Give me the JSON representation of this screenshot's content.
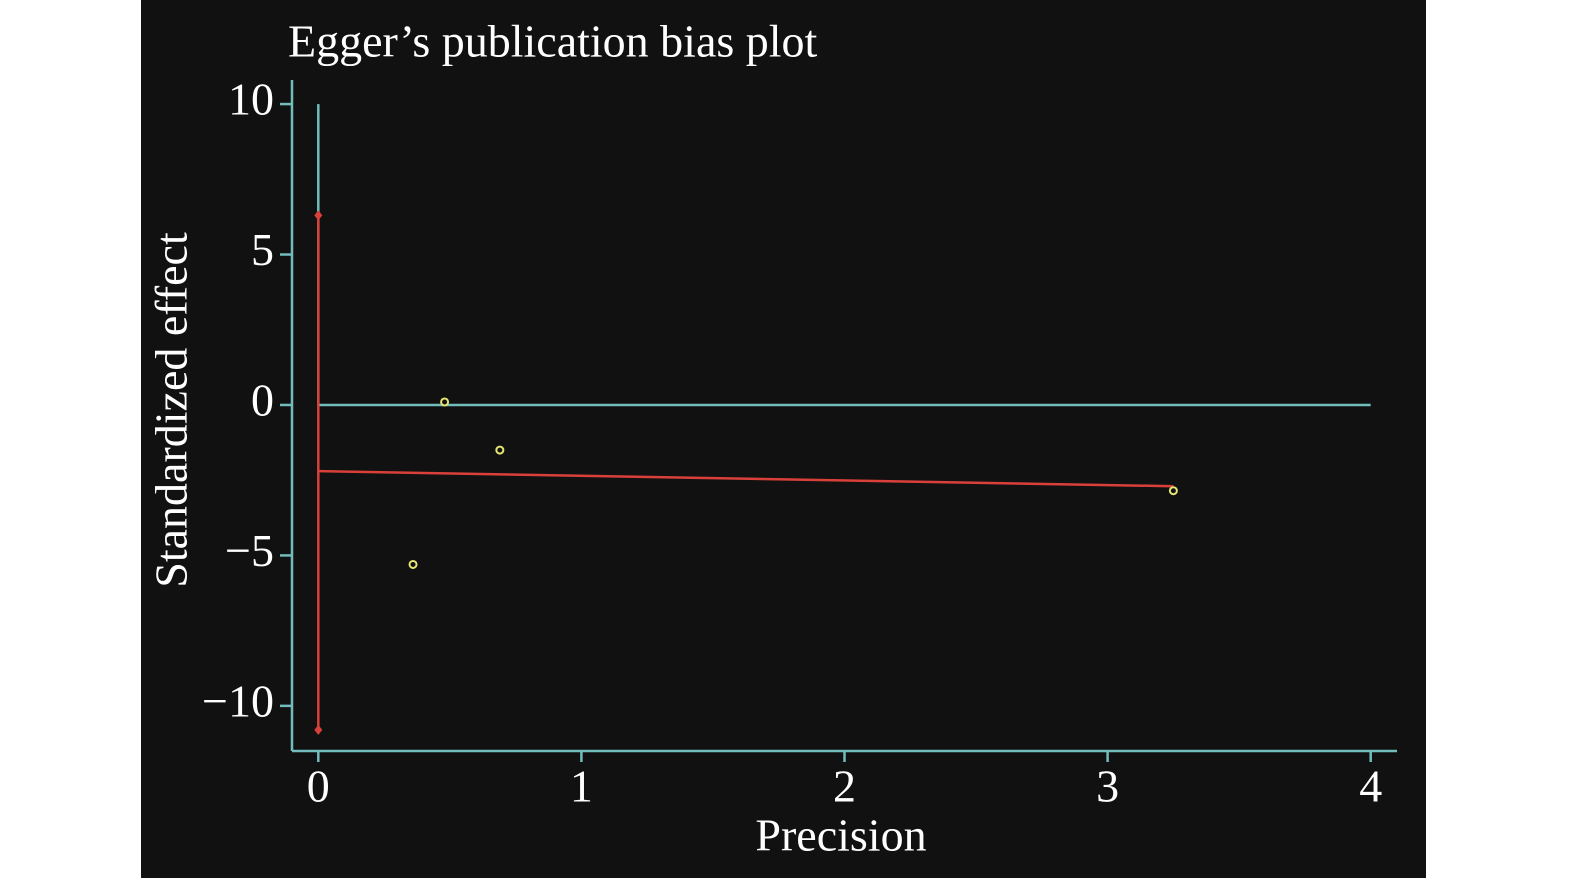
{
  "chart_data": {
    "type": "scatter",
    "title": "Egger’s publication bias plot",
    "xlabel": "Precision",
    "ylabel": "Standardized effect",
    "x": [
      0.36,
      0.48,
      0.69,
      3.25
    ],
    "y": [
      -5.3,
      0.1,
      -1.5,
      -2.85
    ],
    "color": "#e6e673",
    "regression": {
      "x": [
        0,
        3.25
      ],
      "y": [
        -2.2,
        -2.7
      ],
      "color": "#d9403a"
    },
    "intercept_ci": {
      "x": 0,
      "lower": -10.8,
      "upper": 6.3,
      "color": "#d9403a"
    },
    "hline": {
      "y": 0,
      "x": [
        0,
        4
      ]
    },
    "vline": {
      "x": 0,
      "y": [
        0,
        10
      ]
    },
    "axis_color": "#72bcbc",
    "xlim": [
      -0.1,
      4.1
    ],
    "ylim": [
      -11.5,
      10.8
    ],
    "xticks": [
      0,
      1,
      2,
      3,
      4
    ],
    "yticks": [
      {
        "value": -10,
        "label": "−10"
      },
      {
        "value": -5,
        "label": "−5"
      },
      0,
      5,
      10
    ]
  }
}
